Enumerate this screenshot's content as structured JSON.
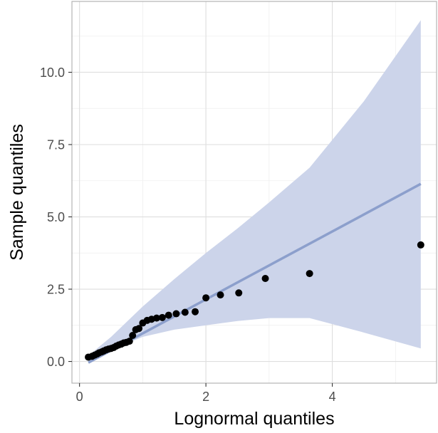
{
  "chart_data": {
    "type": "scatter",
    "title": "",
    "xlabel": "Lognormal quantiles",
    "ylabel": "Sample quantiles",
    "xlim": [
      -0.12,
      5.65
    ],
    "ylim": [
      -0.75,
      12.45
    ],
    "x_ticks": [
      0,
      2,
      4
    ],
    "x_tick_labels": [
      "0",
      "2",
      "4"
    ],
    "y_ticks": [
      0,
      2.5,
      5,
      7.5,
      10
    ],
    "y_tick_labels": [
      "0.0",
      "2.5",
      "5.0",
      "7.5",
      "10.0"
    ],
    "grid": true,
    "legend": "none",
    "colors": {
      "points": "#000000",
      "line": "#8c9fcc",
      "band": "#ccd4ea",
      "grid_major": "#dedede",
      "grid_minor": "#efefef",
      "border": "#b3b3b3"
    },
    "series": [
      {
        "kind": "points",
        "x": [
          0.14,
          0.2,
          0.24,
          0.28,
          0.31,
          0.35,
          0.38,
          0.42,
          0.46,
          0.5,
          0.54,
          0.58,
          0.62,
          0.66,
          0.7,
          0.74,
          0.79,
          0.84,
          0.89,
          0.94,
          1.0,
          1.07,
          1.14,
          1.22,
          1.31,
          1.41,
          1.53,
          1.67,
          1.83,
          2.0,
          2.23,
          2.52,
          2.94,
          3.64,
          5.4
        ],
        "y": [
          0.15,
          0.18,
          0.22,
          0.26,
          0.3,
          0.33,
          0.36,
          0.4,
          0.43,
          0.45,
          0.48,
          0.53,
          0.57,
          0.6,
          0.64,
          0.66,
          0.7,
          0.9,
          1.1,
          1.14,
          1.33,
          1.42,
          1.46,
          1.5,
          1.52,
          1.6,
          1.65,
          1.7,
          1.72,
          2.2,
          2.3,
          2.37,
          2.87,
          3.04,
          4.03
        ]
      },
      {
        "kind": "reference-line",
        "x": [
          0.14,
          5.4
        ],
        "y": [
          -0.04,
          6.14
        ]
      },
      {
        "kind": "confidence-band",
        "x": [
          0.14,
          0.5,
          1.0,
          1.5,
          2.0,
          2.5,
          3.0,
          3.64,
          4.5,
          5.4
        ],
        "upper": [
          0.2,
          0.85,
          1.9,
          2.85,
          3.75,
          4.6,
          5.5,
          6.7,
          9.0,
          11.8
        ],
        "lower": [
          -0.05,
          0.4,
          0.85,
          1.1,
          1.25,
          1.4,
          1.5,
          1.5,
          1.0,
          0.45
        ]
      }
    ]
  }
}
